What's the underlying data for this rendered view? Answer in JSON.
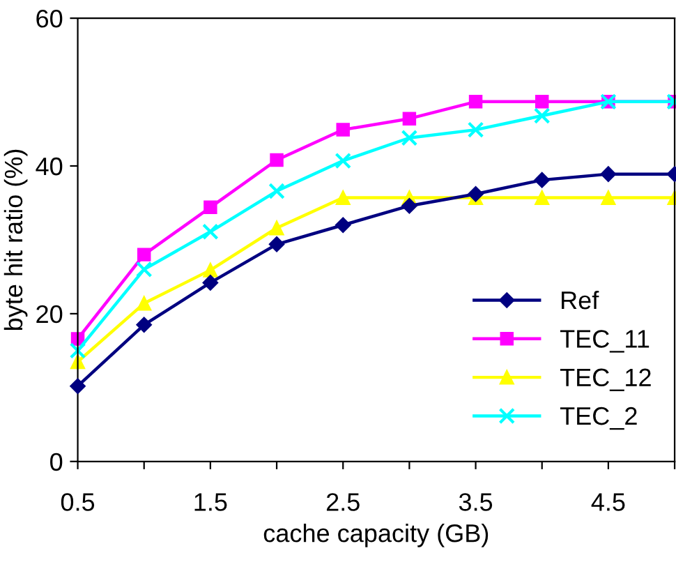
{
  "chart_data": {
    "type": "line",
    "xlabel": "cache capacity (GB)",
    "ylabel": "byte hit ratio (%)",
    "categories": [
      "0.5",
      null,
      "1.5",
      null,
      "2.5",
      null,
      "3.5",
      null,
      "4.5",
      null
    ],
    "ylim": [
      0,
      60
    ],
    "yticks": [
      0,
      20,
      40,
      60
    ],
    "grid": false,
    "legend": "bottom right",
    "series": [
      {
        "name": "Ref",
        "color": "#000080",
        "marker": "diamond",
        "values": [
          10.2,
          18.5,
          24.2,
          29.4,
          32.0,
          34.6,
          36.2,
          38.1,
          38.9,
          38.9
        ]
      },
      {
        "name": "TEC_11",
        "color": "#ff00ff",
        "marker": "square",
        "values": [
          16.6,
          28.0,
          34.4,
          40.8,
          44.9,
          46.4,
          48.7,
          48.7,
          48.7,
          48.7
        ]
      },
      {
        "name": "TEC_12",
        "color": "#ffff00",
        "marker": "triangle",
        "values": [
          13.5,
          21.4,
          25.9,
          31.6,
          35.7,
          35.7,
          35.7,
          35.7,
          35.7,
          35.7
        ]
      },
      {
        "name": "TEC_2",
        "color": "#00ffff",
        "marker": "cross",
        "values": [
          15.0,
          26.0,
          31.1,
          36.6,
          40.7,
          43.8,
          44.9,
          46.8,
          48.7,
          48.7
        ]
      }
    ]
  }
}
